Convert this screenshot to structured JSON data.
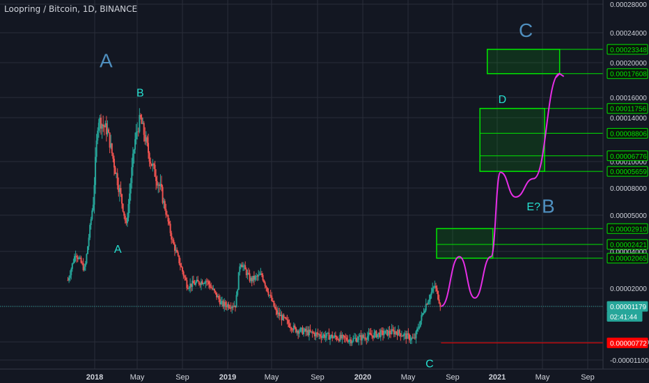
{
  "header": {
    "title": "Loopring / Bitcoin, 1D, BINANCE"
  },
  "colors": {
    "background": "#131722",
    "grid": "#2a2e39",
    "axis_text": "#d1d4dc",
    "candle_up": "#26a69a",
    "candle_down": "#ef5350",
    "projection": "#e62ee6",
    "box": "#00e600",
    "wave_label_big": "#4f8fbf",
    "wave_label_small": "#26e0d0",
    "last_price_bg": "#26a69a",
    "low_price_bg": "#ff0000"
  },
  "chart_data": {
    "type": "candlestick",
    "title": "Loopring / Bitcoin, 1D, BINANCE",
    "x_tick_labels": [
      "2018",
      "May",
      "Sep",
      "2019",
      "May",
      "Sep",
      "2020",
      "May",
      "Sep",
      "2021",
      "May",
      "Sep"
    ],
    "y_scale": "log",
    "y_tick_labels": [
      "0.00028000",
      "0.00024000",
      "0.00020000",
      "0.00016000",
      "0.00014000",
      "0.00010000",
      "0.00008000",
      "0.00005000",
      "0.00004000",
      "0.00002000",
      "0.00001000",
      "-0.00000300",
      "-0.00001100"
    ],
    "price_path": [
      {
        "date": "2017-10-20",
        "price": 1.6e-05
      },
      {
        "date": "2017-11-10",
        "price": 2.2e-05
      },
      {
        "date": "2017-12-05",
        "price": 1.8e-05
      },
      {
        "date": "2017-12-28",
        "price": 4e-05
      },
      {
        "date": "2018-01-10",
        "price": 0.000105
      },
      {
        "date": "2018-02-05",
        "price": 9e-05
      },
      {
        "date": "2018-03-10",
        "price": 4.5e-05
      },
      {
        "date": "2018-03-28",
        "price": 3e-05
      },
      {
        "date": "2018-04-20",
        "price": 8e-05
      },
      {
        "date": "2018-05-05",
        "price": 0.000105
      },
      {
        "date": "2018-06-01",
        "price": 6.5e-05
      },
      {
        "date": "2018-07-01",
        "price": 4.5e-05
      },
      {
        "date": "2018-08-01",
        "price": 2.5e-05
      },
      {
        "date": "2018-09-10",
        "price": 1.5e-05
      },
      {
        "date": "2018-11-01",
        "price": 1.6e-05
      },
      {
        "date": "2018-12-15",
        "price": 1.2e-05
      },
      {
        "date": "2019-01-20",
        "price": 1.2e-05
      },
      {
        "date": "2019-02-01",
        "price": 2e-05
      },
      {
        "date": "2019-03-01",
        "price": 1.6e-05
      },
      {
        "date": "2019-04-01",
        "price": 1.7e-05
      },
      {
        "date": "2019-05-10",
        "price": 1.1e-05
      },
      {
        "date": "2019-07-01",
        "price": 9e-06
      },
      {
        "date": "2019-09-01",
        "price": 8.5e-06
      },
      {
        "date": "2019-12-01",
        "price": 8e-06
      },
      {
        "date": "2020-02-01",
        "price": 8.5e-06
      },
      {
        "date": "2020-04-01",
        "price": 8.8e-06
      },
      {
        "date": "2020-05-20",
        "price": 8e-06
      },
      {
        "date": "2020-06-20",
        "price": 1.2e-05
      },
      {
        "date": "2020-07-15",
        "price": 1.5e-05
      },
      {
        "date": "2020-08-01",
        "price": 1.18e-05
      }
    ],
    "projection_path": [
      {
        "date": "2020-08-01",
        "price": 1.18e-05
      },
      {
        "date": "2020-09-20",
        "price": 2.1e-05
      },
      {
        "date": "2020-11-01",
        "price": 1.3e-05
      },
      {
        "date": "2020-12-15",
        "price": 2.1e-05
      },
      {
        "date": "2021-01-10",
        "price": 5.6e-05
      },
      {
        "date": "2021-02-20",
        "price": 4.2e-05
      },
      {
        "date": "2021-04-10",
        "price": 5.2e-05
      },
      {
        "date": "2021-06-20",
        "price": 0.000176
      }
    ],
    "boxes": [
      {
        "from": "2020-07-20",
        "to": "2020-12-20",
        "low": 2.065e-05,
        "high": 2.91e-05,
        "mid": 2.421e-05
      },
      {
        "from": "2020-11-15",
        "to": "2021-05-10",
        "low": 5.659e-05,
        "high": 0.00011756,
        "lines": [
          8.806e-05,
          6.776e-05
        ]
      },
      {
        "from": "2020-12-05",
        "to": "2021-06-20",
        "low": 0.00017608,
        "high": 0.00023348
      }
    ],
    "price_labels": [
      {
        "text": "0.00023348",
        "price": 0.00023348,
        "style": "box"
      },
      {
        "text": "0.00017608",
        "price": 0.00017608,
        "style": "box"
      },
      {
        "text": "0.00011756",
        "price": 0.00011756,
        "style": "box"
      },
      {
        "text": "0.00008806",
        "price": 8.806e-05,
        "style": "box"
      },
      {
        "text": "0.00006776",
        "price": 6.776e-05,
        "style": "box"
      },
      {
        "text": "0.00005659",
        "price": 5.659e-05,
        "style": "box"
      },
      {
        "text": "0.00002910",
        "price": 2.91e-05,
        "style": "box"
      },
      {
        "text": "0.00002421",
        "price": 2.421e-05,
        "style": "box"
      },
      {
        "text": "0.00002065",
        "price": 2.065e-05,
        "style": "box"
      },
      {
        "text": "0.00001179",
        "price": 1.179e-05,
        "style": "last"
      },
      {
        "text": "02:41:44",
        "price": 1.05e-05,
        "style": "timer"
      },
      {
        "text": "0.00000772",
        "price": 7.72e-06,
        "style": "low"
      }
    ],
    "wave_labels": [
      {
        "text": "A",
        "date": "2018-02-01",
        "price": 0.00019,
        "size": "big"
      },
      {
        "text": "B",
        "date": "2018-05-05",
        "price": 0.000135,
        "size": "small"
      },
      {
        "text": "A",
        "date": "2018-03-05",
        "price": 2.2e-05,
        "size": "small"
      },
      {
        "text": "C",
        "date": "2020-07-01",
        "price": 5.8e-06,
        "size": "small"
      },
      {
        "text": "C",
        "date": "2021-03-20",
        "price": 0.00027,
        "size": "big"
      },
      {
        "text": "D",
        "date": "2021-01-15",
        "price": 0.000125,
        "size": "small"
      },
      {
        "text": "E?",
        "date": "2021-04-10",
        "price": 3.6e-05,
        "size": "small"
      },
      {
        "text": "B",
        "date": "2021-05-20",
        "price": 3.5e-05,
        "size": "big"
      }
    ],
    "last_price_line": 1.179e-05,
    "low_price_line": 7.72e-06,
    "grid": true
  }
}
